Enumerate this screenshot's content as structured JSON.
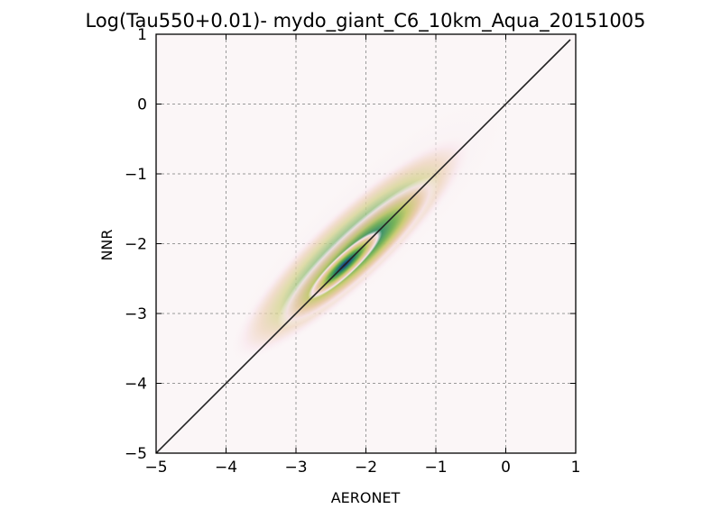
{
  "chart_data": {
    "type": "heatmap",
    "title": "Log(Tau550+0.01)- mydo_giant_C6_10km_Aqua_20151005",
    "xlabel": "AERONET",
    "ylabel": "NNR",
    "xlim": [
      -5,
      1
    ],
    "ylim": [
      -5,
      1
    ],
    "xticks": [
      "−5",
      "−4",
      "−3",
      "−2",
      "−1",
      "0",
      "1"
    ],
    "yticks": [
      "−5",
      "−4",
      "−3",
      "−2",
      "−1",
      "0",
      "1"
    ],
    "grid": true,
    "one_to_one_line": {
      "x": [
        -5,
        1
      ],
      "y": [
        -5,
        1
      ]
    },
    "density": {
      "peak": [
        -2.3,
        -2.3
      ],
      "extent_x": [
        -3.5,
        -0.3
      ],
      "extent_y": [
        -3.2,
        -0.1
      ],
      "colormap": [
        "#ffffff",
        "#f8e3ea",
        "#e9c9a8",
        "#c7c96a",
        "#6fb04e",
        "#2e8a63",
        "#1c4f86",
        "#0c1f5e"
      ]
    }
  }
}
